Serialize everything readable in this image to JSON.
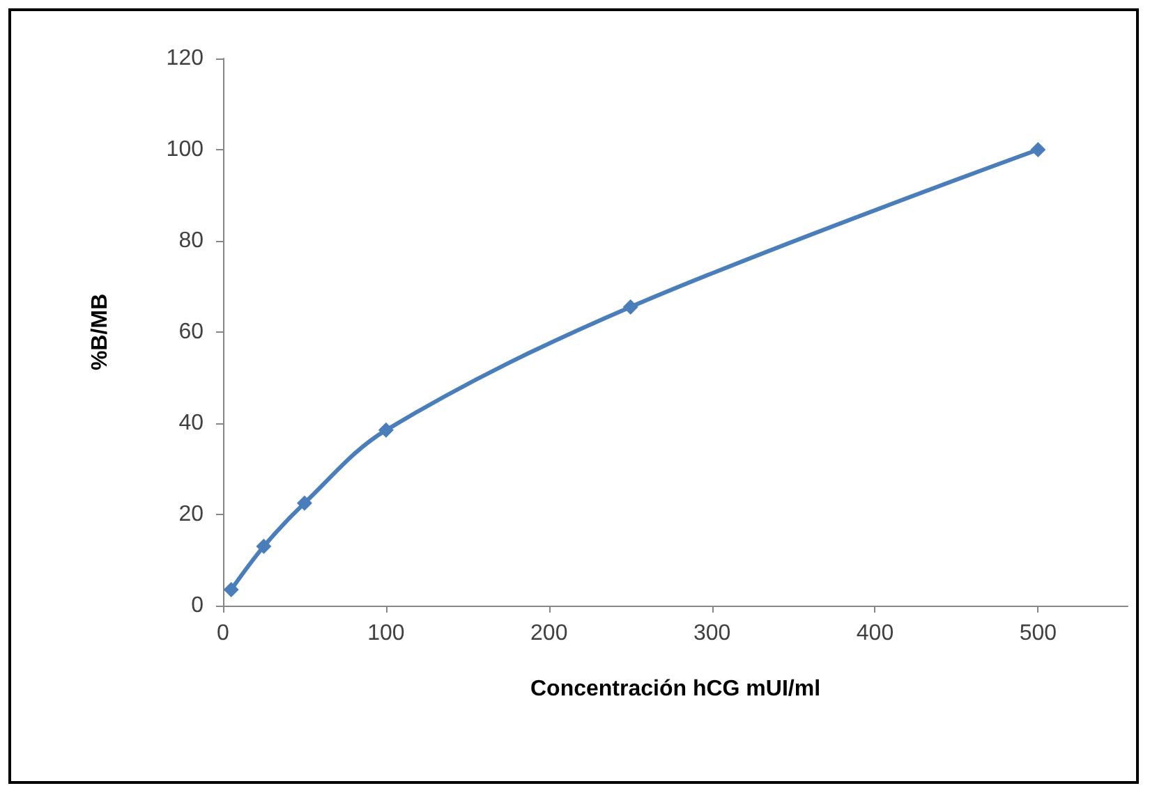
{
  "chart_data": {
    "type": "line",
    "xlabel": "Concentración hCG mUI/ml",
    "ylabel": "%B/MB",
    "x": [
      5,
      25,
      50,
      100,
      250,
      500
    ],
    "series": [
      {
        "color": "#4a7ebb",
        "values": [
          3.5,
          13,
          22.5,
          38.5,
          65.5,
          100
        ]
      }
    ],
    "xlim": [
      0,
      555
    ],
    "xticks": [
      0,
      100,
      200,
      300,
      400,
      500
    ],
    "ylim": [
      0,
      120
    ],
    "yticks": [
      0,
      20,
      40,
      60,
      80,
      100,
      120
    ],
    "grid": false,
    "marker": "diamond",
    "line_style": "solid"
  }
}
